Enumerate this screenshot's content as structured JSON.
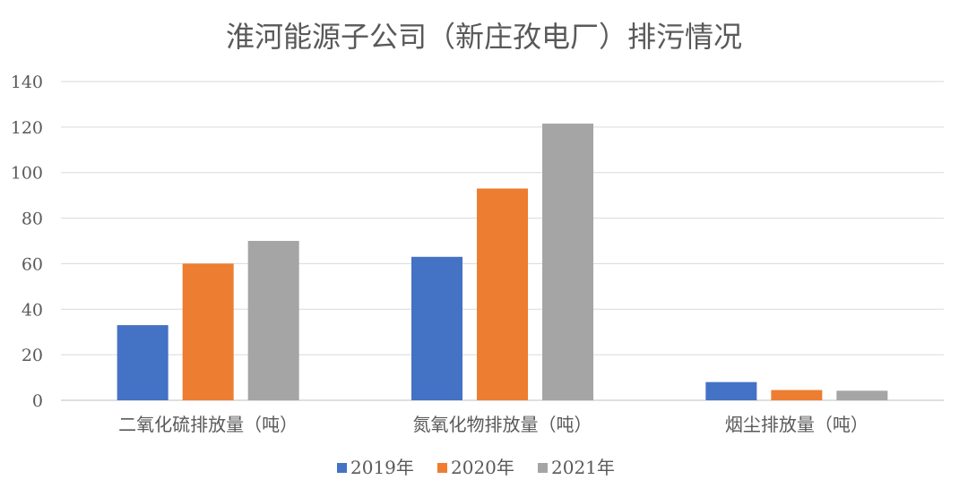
{
  "chart_data": {
    "type": "bar",
    "title": "淮河能源子公司（新庄孜电厂）排污情况",
    "categories": [
      "二氧化硫排放量（吨）",
      "氮氧化物排放量（吨）",
      "烟尘排放量（吨）"
    ],
    "series": [
      {
        "name": "2019年",
        "values": [
          33,
          63,
          8
        ],
        "color": "#4472c4"
      },
      {
        "name": "2020年",
        "values": [
          60,
          93,
          4.5
        ],
        "color": "#ed7d31"
      },
      {
        "name": "2021年",
        "values": [
          70,
          121.5,
          4.2
        ],
        "color": "#a5a5a5"
      }
    ],
    "ylim": [
      0,
      140
    ],
    "yticks": [
      0,
      20,
      40,
      60,
      80,
      100,
      120,
      140
    ],
    "xlabel": "",
    "ylabel": "",
    "grid": true,
    "legend": "bottom"
  }
}
